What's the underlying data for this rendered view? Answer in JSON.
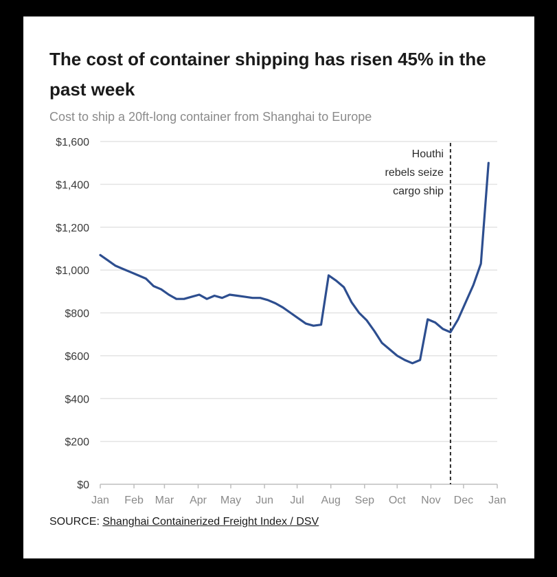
{
  "chart_data": {
    "type": "line",
    "title": "The cost of container shipping has risen 45% in the past week",
    "subtitle": "Cost to ship a 20ft-long container from Shanghai to Europe",
    "x_ticks": [
      "Jan",
      "Feb",
      "Mar",
      "Apr",
      "May",
      "Jun",
      "Jul",
      "Aug",
      "Sep",
      "Oct",
      "Nov",
      "Dec",
      "Jan"
    ],
    "y_ticks": [
      {
        "value": 0,
        "label": "$0"
      },
      {
        "value": 200,
        "label": "$200"
      },
      {
        "value": 400,
        "label": "$400"
      },
      {
        "value": 600,
        "label": "$600"
      },
      {
        "value": 800,
        "label": "$800"
      },
      {
        "value": 1000,
        "label": "$1,000"
      },
      {
        "value": 1200,
        "label": "$1,200"
      },
      {
        "value": 1400,
        "label": "$1,400"
      },
      {
        "value": 1600,
        "label": "$1,600"
      }
    ],
    "ylim": [
      0,
      1600
    ],
    "grid": true,
    "line_color": "#2d4e8f",
    "series": [
      {
        "x": [
          "2023-01-01",
          "2023-01-08",
          "2023-01-15",
          "2023-01-22",
          "2023-01-29",
          "2023-02-05",
          "2023-02-12",
          "2023-02-19",
          "2023-02-26",
          "2023-03-05",
          "2023-03-12",
          "2023-03-19",
          "2023-03-26",
          "2023-04-02",
          "2023-04-09",
          "2023-04-16",
          "2023-04-23",
          "2023-04-30",
          "2023-05-07",
          "2023-05-14",
          "2023-05-21",
          "2023-05-28",
          "2023-06-04",
          "2023-06-11",
          "2023-06-18",
          "2023-06-25",
          "2023-07-02",
          "2023-07-09",
          "2023-07-16",
          "2023-07-23",
          "2023-07-30",
          "2023-08-06",
          "2023-08-13",
          "2023-08-20",
          "2023-08-27",
          "2023-09-03",
          "2023-09-10",
          "2023-09-17",
          "2023-09-24",
          "2023-10-01",
          "2023-10-08",
          "2023-10-15",
          "2023-10-22",
          "2023-10-29",
          "2023-11-05",
          "2023-11-12",
          "2023-11-19",
          "2023-11-26",
          "2023-12-03",
          "2023-12-10",
          "2023-12-17",
          "2023-12-24"
        ],
        "values": [
          1070,
          1045,
          1020,
          1005,
          990,
          975,
          960,
          925,
          910,
          885,
          865,
          865,
          875,
          885,
          865,
          880,
          870,
          885,
          880,
          875,
          870,
          870,
          860,
          845,
          825,
          800,
          775,
          750,
          740,
          745,
          975,
          950,
          920,
          850,
          800,
          765,
          715,
          660,
          630,
          600,
          580,
          565,
          580,
          770,
          755,
          725,
          710,
          770,
          850,
          930,
          1030,
          1500
        ]
      }
    ],
    "annotation": {
      "date": "2023-11-19",
      "lines": [
        "Houthi",
        "rebels seize",
        "cargo ship"
      ]
    },
    "source_label": "SOURCE:",
    "source_text": "Shanghai Containerized Freight Index / DSV"
  }
}
